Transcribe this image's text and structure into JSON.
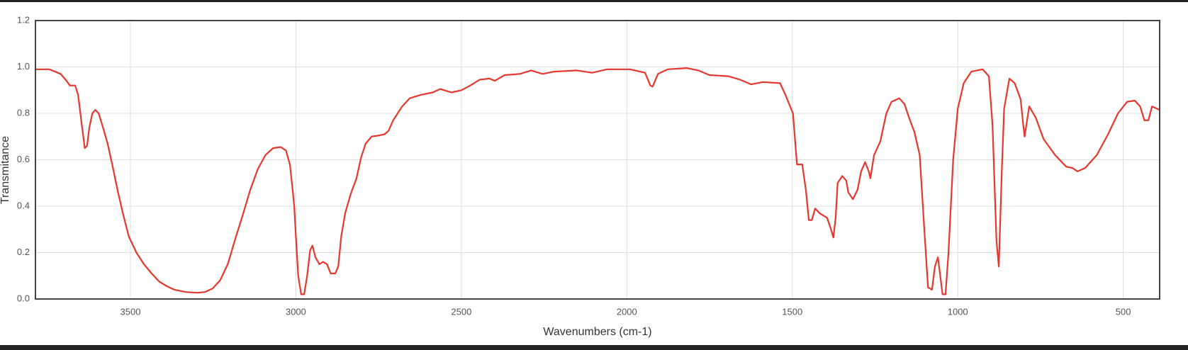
{
  "chart_data": {
    "type": "line",
    "x_label": "Wavenumbers (cm-1)",
    "y_label": "Transmitance",
    "xlim": [
      3787,
      390
    ],
    "ylim": [
      0,
      1.2
    ],
    "xticks": [
      3500,
      3000,
      2500,
      2000,
      1500,
      1000,
      500
    ],
    "yticks": [
      {
        "value": 0,
        "label": "0.0"
      },
      0.2,
      0.4,
      0.6,
      0.8,
      {
        "value": 1,
        "label": "1.0"
      },
      1.2
    ],
    "grid": true,
    "series": [
      {
        "color": "#e5372d",
        "x": [
          3787,
          3745,
          3711,
          3693,
          3683,
          3667,
          3658,
          3647,
          3638,
          3631,
          3624,
          3615,
          3606,
          3596,
          3583,
          3569,
          3555,
          3539,
          3523,
          3505,
          3482,
          3459,
          3436,
          3413,
          3390,
          3367,
          3333,
          3298,
          3275,
          3252,
          3229,
          3206,
          3183,
          3161,
          3138,
          3115,
          3092,
          3069,
          3046,
          3030,
          3018,
          3009,
          3005,
          3000,
          2993,
          2984,
          2975,
          2966,
          2957,
          2950,
          2941,
          2929,
          2918,
          2906,
          2895,
          2881,
          2872,
          2863,
          2851,
          2835,
          2817,
          2803,
          2789,
          2771,
          2748,
          2732,
          2720,
          2706,
          2679,
          2656,
          2622,
          2587,
          2564,
          2530,
          2500,
          2473,
          2445,
          2415,
          2399,
          2369,
          2323,
          2289,
          2255,
          2220,
          2151,
          2105,
          2060,
          1991,
          1945,
          1929,
          1922,
          1906,
          1876,
          1819,
          1784,
          1750,
          1693,
          1658,
          1624,
          1589,
          1537,
          1521,
          1498,
          1486,
          1470,
          1459,
          1450,
          1441,
          1431,
          1418,
          1395,
          1383,
          1376,
          1369,
          1363,
          1349,
          1337,
          1331,
          1317,
          1303,
          1292,
          1280,
          1269,
          1264,
          1253,
          1234,
          1216,
          1200,
          1177,
          1161,
          1147,
          1131,
          1115,
          1101,
          1090,
          1078,
          1069,
          1060,
          1053,
          1046,
          1037,
          1028,
          1014,
          1000,
          982,
          959,
          925,
          906,
          895,
          883,
          876,
          867,
          860,
          844,
          828,
          810,
          803,
          798,
          784,
          764,
          741,
          706,
          672,
          654,
          638,
          615,
          580,
          546,
          516,
          488,
          465,
          449,
          436,
          424,
          413,
          390
        ],
        "values": [
          0.99,
          0.99,
          0.97,
          0.94,
          0.92,
          0.92,
          0.88,
          0.75,
          0.65,
          0.66,
          0.74,
          0.8,
          0.815,
          0.8,
          0.74,
          0.67,
          0.58,
          0.47,
          0.37,
          0.27,
          0.2,
          0.15,
          0.11,
          0.075,
          0.055,
          0.04,
          0.03,
          0.027,
          0.03,
          0.045,
          0.08,
          0.15,
          0.26,
          0.36,
          0.47,
          0.56,
          0.62,
          0.65,
          0.655,
          0.64,
          0.58,
          0.46,
          0.4,
          0.27,
          0.1,
          0.02,
          0.02,
          0.1,
          0.21,
          0.23,
          0.18,
          0.15,
          0.16,
          0.15,
          0.11,
          0.11,
          0.14,
          0.27,
          0.37,
          0.45,
          0.52,
          0.61,
          0.67,
          0.7,
          0.705,
          0.71,
          0.725,
          0.77,
          0.83,
          0.865,
          0.88,
          0.89,
          0.905,
          0.89,
          0.9,
          0.92,
          0.945,
          0.95,
          0.94,
          0.965,
          0.97,
          0.985,
          0.97,
          0.98,
          0.985,
          0.975,
          0.99,
          0.99,
          0.975,
          0.92,
          0.915,
          0.97,
          0.99,
          0.995,
          0.985,
          0.965,
          0.96,
          0.945,
          0.925,
          0.935,
          0.93,
          0.88,
          0.8,
          0.58,
          0.58,
          0.47,
          0.34,
          0.34,
          0.39,
          0.37,
          0.35,
          0.3,
          0.265,
          0.35,
          0.5,
          0.53,
          0.51,
          0.46,
          0.43,
          0.47,
          0.55,
          0.59,
          0.55,
          0.52,
          0.62,
          0.68,
          0.8,
          0.85,
          0.865,
          0.84,
          0.78,
          0.72,
          0.62,
          0.3,
          0.05,
          0.04,
          0.14,
          0.18,
          0.1,
          0.02,
          0.02,
          0.2,
          0.6,
          0.82,
          0.93,
          0.98,
          0.99,
          0.96,
          0.75,
          0.25,
          0.14,
          0.55,
          0.82,
          0.95,
          0.93,
          0.86,
          0.76,
          0.7,
          0.83,
          0.78,
          0.69,
          0.62,
          0.57,
          0.565,
          0.55,
          0.565,
          0.62,
          0.71,
          0.8,
          0.85,
          0.855,
          0.83,
          0.77,
          0.77,
          0.83,
          0.815
        ]
      }
    ]
  }
}
